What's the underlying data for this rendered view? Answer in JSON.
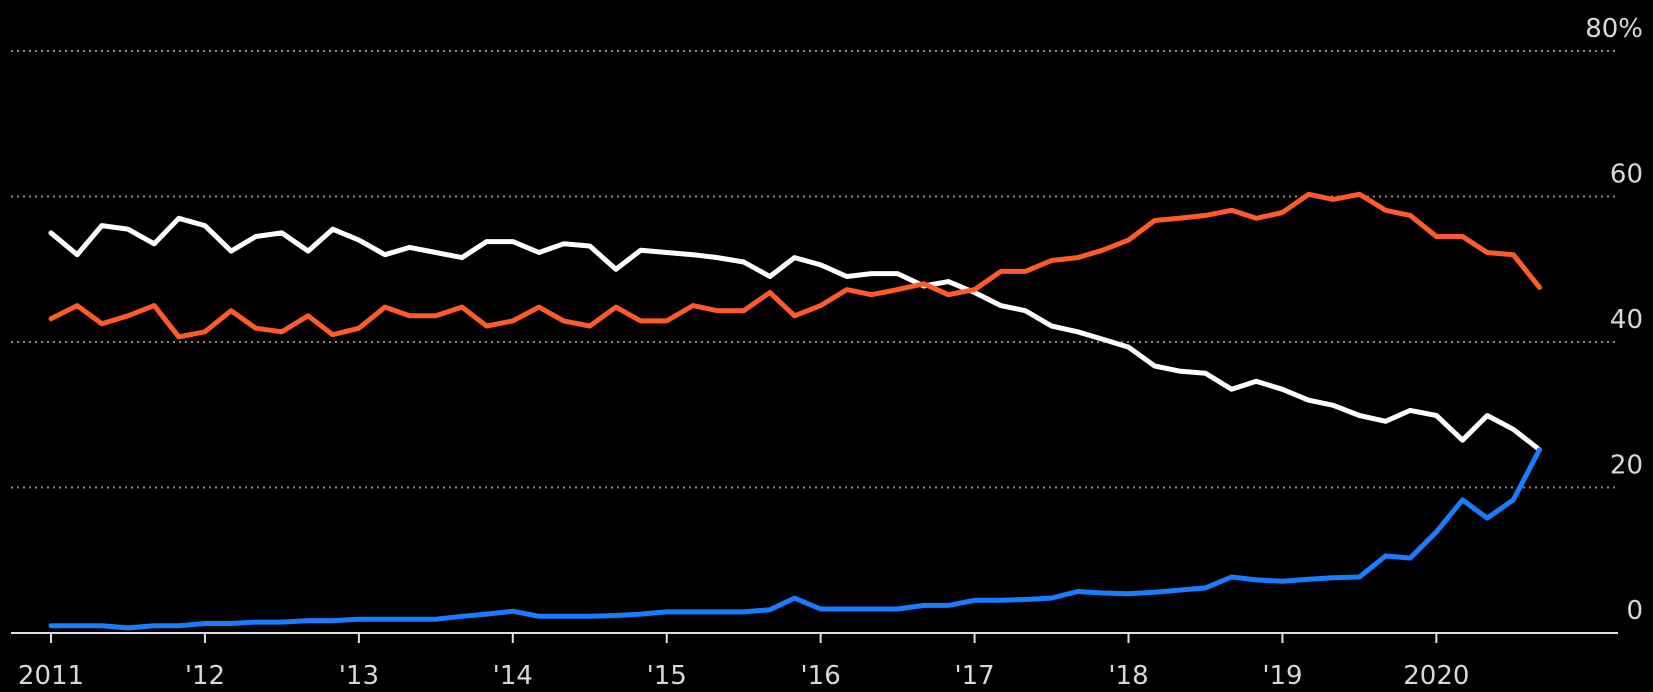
{
  "chart_data": {
    "type": "line",
    "x": [
      2011,
      2011.17,
      2011.33,
      2011.5,
      2011.67,
      2011.83,
      2012,
      2012.17,
      2012.33,
      2012.5,
      2012.67,
      2012.83,
      2013,
      2013.17,
      2013.33,
      2013.5,
      2013.67,
      2013.83,
      2014,
      2014.17,
      2014.33,
      2014.5,
      2014.67,
      2014.83,
      2015,
      2015.17,
      2015.33,
      2015.5,
      2015.67,
      2015.83,
      2016,
      2016.17,
      2016.33,
      2016.5,
      2016.67,
      2016.83,
      2017,
      2017.17,
      2017.33,
      2017.5,
      2017.67,
      2017.83,
      2018,
      2018.17,
      2018.33,
      2018.5,
      2018.67,
      2018.83,
      2019,
      2019.17,
      2019.33,
      2019.5,
      2019.67,
      2019.83,
      2020,
      2020.17,
      2020.33,
      2020.5,
      2020.67
    ],
    "series": [
      {
        "color": "#ffffff",
        "values": [
          55,
          52,
          56,
          55.5,
          53.5,
          57,
          56,
          52.5,
          54.5,
          55,
          52.5,
          55.5,
          54,
          52,
          53,
          52.3,
          51.6,
          53.8,
          53.8,
          52.3,
          53.5,
          53.2,
          50,
          52.6,
          52.3,
          52,
          51.6,
          51,
          49,
          51.6,
          50.6,
          49,
          49.4,
          49.4,
          47.7,
          48.3,
          46.8,
          45,
          44.3,
          42.2,
          41.4,
          40.4,
          39.3,
          36.7,
          36,
          35.7,
          33.5,
          34.6,
          33.5,
          32,
          31.3,
          29.9,
          29.1,
          30.6,
          29.9,
          26.5,
          29.9,
          28,
          25.2
        ]
      },
      {
        "color": "#ff5a2a",
        "values": [
          43.2,
          45,
          42.5,
          43.6,
          45,
          40.7,
          41.4,
          44.3,
          41.9,
          41.4,
          43.6,
          41,
          41.9,
          44.8,
          43.6,
          43.6,
          44.8,
          42.2,
          42.9,
          44.8,
          42.9,
          42.2,
          44.8,
          42.9,
          42.9,
          45,
          44.3,
          44.3,
          46.8,
          43.6,
          45,
          47.2,
          46.5,
          47.2,
          48,
          46.5,
          47.2,
          49.7,
          49.7,
          51.2,
          51.6,
          52.6,
          54,
          56.7,
          57,
          57.4,
          58.1,
          57,
          57.8,
          60.3,
          59.6,
          60.3,
          58.1,
          57.4,
          54.5,
          54.5,
          52.3,
          52,
          47.5
        ]
      },
      {
        "color": "#1a7cff",
        "values": [
          1,
          1,
          1,
          0.7,
          1,
          1,
          1.3,
          1.3,
          1.5,
          1.5,
          1.7,
          1.7,
          1.9,
          1.9,
          1.9,
          1.9,
          2.3,
          2.6,
          3,
          2.3,
          2.3,
          2.3,
          2.4,
          2.6,
          2.9,
          2.9,
          2.9,
          2.9,
          3.2,
          4.8,
          3.3,
          3.3,
          3.3,
          3.3,
          3.8,
          3.8,
          4.5,
          4.5,
          4.6,
          4.8,
          5.7,
          5.5,
          5.4,
          5.6,
          5.9,
          6.2,
          7.7,
          7.3,
          7.1,
          7.4,
          7.6,
          7.7,
          10.6,
          10.3,
          13.9,
          18.3,
          15.8,
          18.3,
          25.2
        ]
      }
    ],
    "xlim": [
      2010.74,
      2021.18
    ],
    "xticks": [
      {
        "value": 2011,
        "label": "2011"
      },
      {
        "value": 2012,
        "label": "'12"
      },
      {
        "value": 2013,
        "label": "'13"
      },
      {
        "value": 2014,
        "label": "'14"
      },
      {
        "value": 2015,
        "label": "'15"
      },
      {
        "value": 2016,
        "label": "'16"
      },
      {
        "value": 2017,
        "label": "'17"
      },
      {
        "value": 2018,
        "label": "'18"
      },
      {
        "value": 2019,
        "label": "'19"
      },
      {
        "value": 2020,
        "label": "2020"
      }
    ],
    "ylim": [
      0,
      80
    ],
    "yticks": [
      0,
      20,
      40,
      60,
      {
        "value": 80,
        "label": "80%"
      }
    ],
    "grid": true
  }
}
